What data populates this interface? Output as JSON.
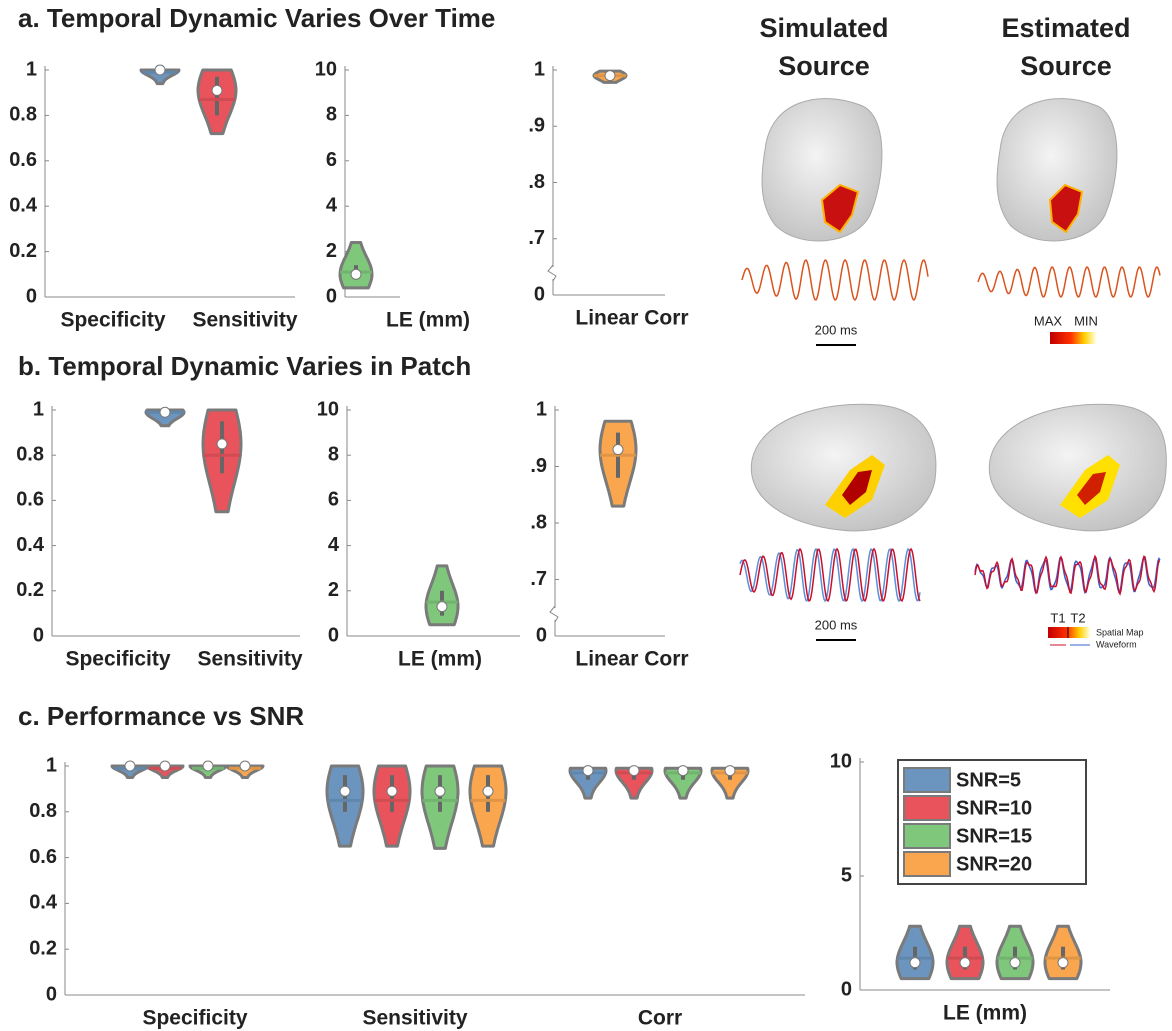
{
  "chart_data": [
    {
      "type": "violin",
      "categories": [
        "Specificity",
        "Sensitivity"
      ],
      "ylim": [
        0,
        1
      ],
      "yticks": [
        0,
        0.2,
        0.4,
        0.6,
        0.8,
        1
      ],
      "violins": [
        {
          "color": "#6b95bf",
          "min": 0.94,
          "q1": 0.98,
          "median": 0.99,
          "mean": 1,
          "q3": 1,
          "max": 1
        },
        {
          "color": "#e8535c",
          "min": 0.72,
          "q1": 0.8,
          "median": 0.87,
          "mean": 0.91,
          "q3": 0.97,
          "max": 1
        }
      ]
    },
    {
      "type": "violin",
      "categories": [
        "LE (mm)"
      ],
      "ylim": [
        0,
        10
      ],
      "yticks": [
        0,
        2,
        4,
        6,
        8,
        10
      ],
      "violins": [
        {
          "color": "#7ec77b",
          "min": 0.4,
          "q1": 0.8,
          "median": 1.1,
          "mean": 1.0,
          "q3": 1.4,
          "max": 2.4
        }
      ]
    },
    {
      "type": "violin",
      "categories": [
        "Linear Corr"
      ],
      "ylim": [
        0,
        1
      ],
      "axis_break": [
        0,
        0.6
      ],
      "yticks": [
        0,
        {
          "value": 0.7,
          "label": ".7"
        },
        {
          "value": 0.8,
          "label": ".8"
        },
        {
          "value": 0.9,
          "label": ".9"
        },
        1
      ],
      "violins": [
        {
          "color": "#f9a64e",
          "min": 0.978,
          "q1": 0.986,
          "median": 0.99,
          "mean": 0.99,
          "q3": 0.995,
          "max": 0.998
        }
      ]
    },
    {
      "type": "violin",
      "categories": [
        "Specificity",
        "Sensitivity"
      ],
      "ylim": [
        0,
        1
      ],
      "yticks": [
        0,
        0.2,
        0.4,
        0.6,
        0.8,
        1
      ],
      "violins": [
        {
          "color": "#6b95bf",
          "min": 0.93,
          "q1": 0.97,
          "median": 0.99,
          "mean": 0.99,
          "q3": 1,
          "max": 1
        },
        {
          "color": "#e8535c",
          "min": 0.55,
          "q1": 0.72,
          "median": 0.8,
          "mean": 0.85,
          "q3": 0.95,
          "max": 1
        }
      ]
    },
    {
      "type": "violin",
      "categories": [
        "LE (mm)"
      ],
      "ylim": [
        0,
        10
      ],
      "yticks": [
        0,
        2,
        4,
        6,
        8,
        10
      ],
      "violins": [
        {
          "color": "#7ec77b",
          "min": 0.5,
          "q1": 0.9,
          "median": 1.5,
          "mean": 1.3,
          "q3": 2.0,
          "max": 3.1
        }
      ]
    },
    {
      "type": "violin",
      "categories": [
        "Linear Corr"
      ],
      "ylim": [
        0,
        1
      ],
      "axis_break": [
        0,
        0.6
      ],
      "yticks": [
        0,
        {
          "value": 0.7,
          "label": ".7"
        },
        {
          "value": 0.8,
          "label": ".8"
        },
        {
          "value": 0.9,
          "label": ".9"
        },
        1
      ],
      "violins": [
        {
          "color": "#f9a64e",
          "min": 0.83,
          "q1": 0.88,
          "median": 0.92,
          "mean": 0.93,
          "q3": 0.96,
          "max": 0.98
        }
      ]
    },
    {
      "type": "violin",
      "categories": [
        "Specificity",
        "Sensitivity",
        "Corr"
      ],
      "ylim": [
        0,
        1
      ],
      "yticks": [
        0,
        0.2,
        0.4,
        0.6,
        0.8,
        1
      ],
      "series": [
        {
          "name": "SNR=5",
          "color": "#6b95bf",
          "violins": [
            {
              "min": 0.95,
              "q1": 0.98,
              "median": 0.99,
              "mean": 1,
              "q3": 1,
              "max": 1
            },
            {
              "min": 0.65,
              "q1": 0.8,
              "median": 0.85,
              "mean": 0.89,
              "q3": 0.96,
              "max": 1
            },
            {
              "min": 0.86,
              "q1": 0.94,
              "median": 0.97,
              "mean": 0.98,
              "q3": 0.99,
              "max": 0.99
            }
          ]
        },
        {
          "name": "SNR=10",
          "color": "#e8535c",
          "violins": [
            {
              "min": 0.95,
              "q1": 0.98,
              "median": 0.99,
              "mean": 1,
              "q3": 1,
              "max": 1
            },
            {
              "min": 0.65,
              "q1": 0.8,
              "median": 0.85,
              "mean": 0.89,
              "q3": 0.96,
              "max": 1
            },
            {
              "min": 0.86,
              "q1": 0.94,
              "median": 0.97,
              "mean": 0.98,
              "q3": 0.99,
              "max": 0.99
            }
          ]
        },
        {
          "name": "SNR=15",
          "color": "#7ec77b",
          "violins": [
            {
              "min": 0.95,
              "q1": 0.98,
              "median": 0.99,
              "mean": 1,
              "q3": 1,
              "max": 1
            },
            {
              "min": 0.64,
              "q1": 0.8,
              "median": 0.85,
              "mean": 0.89,
              "q3": 0.96,
              "max": 1
            },
            {
              "min": 0.86,
              "q1": 0.94,
              "median": 0.97,
              "mean": 0.98,
              "q3": 0.99,
              "max": 0.99
            }
          ]
        },
        {
          "name": "SNR=20",
          "color": "#f9a64e",
          "violins": [
            {
              "min": 0.95,
              "q1": 0.98,
              "median": 0.99,
              "mean": 1,
              "q3": 1,
              "max": 1
            },
            {
              "min": 0.65,
              "q1": 0.8,
              "median": 0.85,
              "mean": 0.89,
              "q3": 0.96,
              "max": 1
            },
            {
              "min": 0.86,
              "q1": 0.94,
              "median": 0.97,
              "mean": 0.98,
              "q3": 0.99,
              "max": 0.99
            }
          ]
        }
      ]
    },
    {
      "type": "violin",
      "categories": [
        "LE (mm)"
      ],
      "ylim": [
        0,
        10
      ],
      "yticks": [
        0,
        5,
        10
      ],
      "legend": "upper right",
      "series": [
        {
          "color": "#6b95bf",
          "violins": [
            {
              "min": 0.5,
              "q1": 0.9,
              "median": 1.4,
              "mean": 1.2,
              "q3": 1.9,
              "max": 2.8
            }
          ]
        },
        {
          "color": "#e8535c",
          "violins": [
            {
              "min": 0.5,
              "q1": 0.9,
              "median": 1.4,
              "mean": 1.2,
              "q3": 1.9,
              "max": 2.8
            }
          ]
        },
        {
          "color": "#7ec77b",
          "violins": [
            {
              "min": 0.5,
              "q1": 0.9,
              "median": 1.4,
              "mean": 1.2,
              "q3": 1.9,
              "max": 2.8
            }
          ]
        },
        {
          "color": "#f9a64e",
          "violins": [
            {
              "min": 0.5,
              "q1": 0.9,
              "median": 1.4,
              "mean": 1.2,
              "q3": 1.9,
              "max": 2.8
            }
          ]
        }
      ]
    }
  ],
  "figure": {
    "panel_titles": [
      "a. Temporal Dynamic Varies Over Time",
      "b. Temporal Dynamic Varies in Patch",
      "c. Performance vs SNR"
    ],
    "column_titles": [
      [
        "Simulated",
        "Source"
      ],
      [
        "Estimated",
        "Source"
      ]
    ],
    "scale_bars": [
      "200 ms",
      "200 ms"
    ],
    "colorbar_a": [
      "MAX",
      "MIN"
    ],
    "colorbar_b": [
      "T1",
      "T2"
    ],
    "legend_b": [
      "Spatial Map",
      "Waveform"
    ]
  }
}
